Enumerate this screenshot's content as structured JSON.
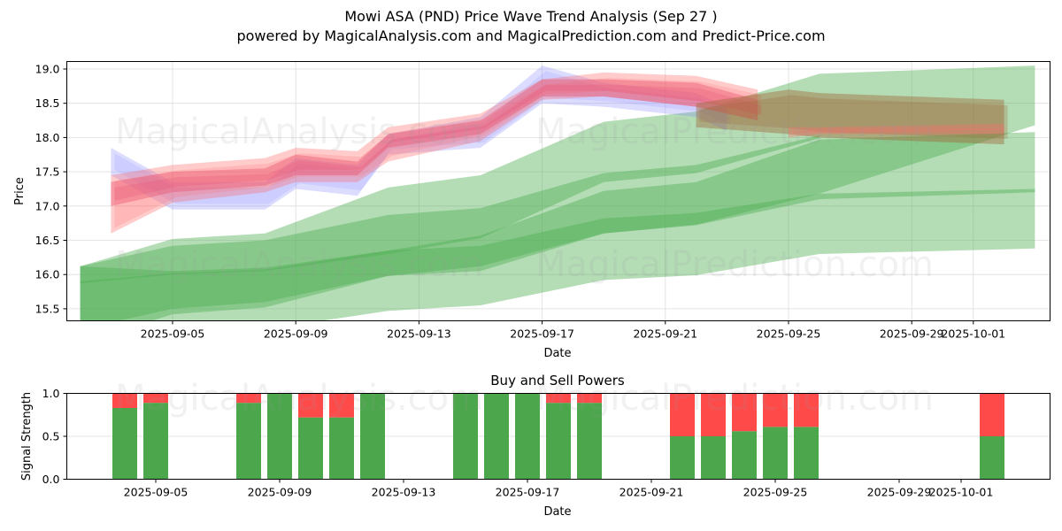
{
  "header": {
    "title": "Mowi ASA (PND) Price Wave Trend Analysis (Sep 27 )",
    "subtitle": "powered by MagicalAnalysis.com and MagicalPrediction.com and Predict-Price.com"
  },
  "watermarks": [
    "MagicalAnalysis.com",
    "MagicalPrediction.com"
  ],
  "colors": {
    "buy": "#4ca64c",
    "sell": "#ff4a4a",
    "band_green": "#4caf50",
    "band_red": "#ff6b6b",
    "band_blue": "#8080ff",
    "band_pink": "#e8506f",
    "band_brown": "#a06a3a"
  },
  "chart_data": [
    {
      "type": "area",
      "title": "",
      "xlabel": "Date",
      "ylabel": "Price",
      "ylim": [
        15.33,
        19.1
      ],
      "xlim": [
        "2025-09-01T12:00",
        "2025-10-03T20:00"
      ],
      "grid": true,
      "yticks": [
        "15.5",
        "16.0",
        "16.5",
        "17.0",
        "17.5",
        "18.0",
        "18.5",
        "19.0"
      ],
      "xticks": [
        "2025-09-05",
        "2025-09-09",
        "2025-09-13",
        "2025-09-17",
        "2025-09-21",
        "2025-09-25",
        "2025-09-29",
        "2025-10-01"
      ],
      "series": [
        {
          "name": "historical-wave-blue",
          "color": "blue",
          "x": [
            "2025-09-03",
            "2025-09-05",
            "2025-09-08",
            "2025-09-09",
            "2025-09-11",
            "2025-09-12",
            "2025-09-15",
            "2025-09-17",
            "2025-09-19",
            "2025-09-22",
            "2025-09-23"
          ],
          "upper": [
            17.85,
            17.35,
            17.35,
            17.7,
            17.6,
            18.05,
            18.3,
            19.05,
            18.8,
            18.65,
            18.45
          ],
          "lower": [
            17.45,
            16.95,
            16.95,
            17.25,
            17.15,
            17.75,
            17.85,
            18.5,
            18.45,
            18.3,
            18.1
          ]
        },
        {
          "name": "historical-wave-red",
          "color": "red",
          "x": [
            "2025-09-03",
            "2025-09-05",
            "2025-09-08",
            "2025-09-09",
            "2025-09-11",
            "2025-09-12",
            "2025-09-15",
            "2025-09-17",
            "2025-09-19",
            "2025-09-22",
            "2025-09-24"
          ],
          "upper": [
            17.45,
            17.6,
            17.7,
            17.85,
            17.8,
            18.15,
            18.35,
            18.85,
            18.95,
            18.9,
            18.7
          ],
          "lower": [
            16.6,
            17.05,
            17.2,
            17.35,
            17.35,
            17.65,
            17.95,
            18.55,
            18.6,
            18.45,
            18.25
          ]
        },
        {
          "name": "historical-wave-pink",
          "color": "pink",
          "x": [
            "2025-09-03",
            "2025-09-05",
            "2025-09-08",
            "2025-09-09",
            "2025-09-11",
            "2025-09-12",
            "2025-09-15",
            "2025-09-17",
            "2025-09-19",
            "2025-09-22",
            "2025-09-24"
          ],
          "upper": [
            17.35,
            17.5,
            17.55,
            17.75,
            17.65,
            18.05,
            18.25,
            18.85,
            18.85,
            18.8,
            18.55
          ],
          "lower": [
            17.0,
            17.2,
            17.3,
            17.45,
            17.45,
            17.85,
            18.05,
            18.6,
            18.6,
            18.45,
            18.25
          ]
        },
        {
          "name": "forecast-wave-brown",
          "color": "brown",
          "x": [
            "2025-09-22",
            "2025-09-25",
            "2025-09-26",
            "2025-10-02"
          ],
          "upper": [
            18.5,
            18.7,
            18.65,
            18.55
          ],
          "lower": [
            18.15,
            18.05,
            18.0,
            17.9
          ]
        },
        {
          "name": "forecast-wave-red",
          "color": "red",
          "x": [
            "2025-09-25",
            "2025-09-26",
            "2025-10-02"
          ],
          "upper": [
            18.15,
            18.15,
            18.2
          ],
          "lower": [
            18.0,
            18.05,
            18.05
          ]
        },
        {
          "name": "green-band-outer-upper",
          "color": "green",
          "x": [
            "2025-09-02",
            "2025-09-05",
            "2025-09-08",
            "2025-09-12",
            "2025-09-15",
            "2025-09-19",
            "2025-09-22",
            "2025-09-26",
            "2025-10-03"
          ],
          "upper": [
            16.12,
            16.52,
            16.6,
            17.27,
            17.45,
            18.23,
            18.38,
            18.93,
            19.05
          ],
          "lower": [
            15.0,
            15.42,
            15.52,
            15.98,
            16.05,
            16.6,
            16.73,
            17.18,
            18.18
          ]
        },
        {
          "name": "green-band-inner-upper",
          "color": "green",
          "x": [
            "2025-09-02",
            "2025-09-05",
            "2025-09-08",
            "2025-09-12",
            "2025-09-15",
            "2025-09-19",
            "2025-09-22",
            "2025-09-26"
          ],
          "upper": [
            16.12,
            16.42,
            16.5,
            16.87,
            16.97,
            17.48,
            17.6,
            18.03
          ],
          "lower": [
            15.87,
            16.0,
            16.05,
            16.3,
            16.53,
            17.35,
            17.48,
            17.99
          ]
        },
        {
          "name": "green-band-outer-lower",
          "color": "green",
          "x": [
            "2025-09-02",
            "2025-09-05",
            "2025-09-08",
            "2025-09-12",
            "2025-09-15",
            "2025-09-19",
            "2025-09-22",
            "2025-09-26",
            "2025-10-03"
          ],
          "upper": [
            16.12,
            16.05,
            16.1,
            16.35,
            16.57,
            17.22,
            17.35,
            17.97,
            18.08
          ],
          "lower": [
            15.0,
            15.15,
            15.2,
            15.47,
            15.55,
            15.92,
            15.99,
            16.3,
            16.38
          ]
        },
        {
          "name": "green-band-inner-lower",
          "color": "green",
          "x": [
            "2025-09-02",
            "2025-09-05",
            "2025-09-08",
            "2025-09-12",
            "2025-09-15",
            "2025-09-19",
            "2025-09-22",
            "2025-09-26",
            "2025-10-03"
          ],
          "upper": [
            15.9,
            16.02,
            16.07,
            16.35,
            16.42,
            16.82,
            16.9,
            17.18,
            17.25
          ],
          "lower": [
            15.2,
            15.5,
            15.6,
            15.98,
            16.12,
            16.6,
            16.72,
            17.1,
            17.2
          ]
        }
      ]
    },
    {
      "type": "bar",
      "title": "Buy and Sell Powers",
      "xlabel": "Date",
      "ylabel": "Signal Strength",
      "ylim": [
        0,
        1
      ],
      "yticks": [
        "0.0",
        "0.5",
        "1.0"
      ],
      "xticks": [
        "2025-09-05",
        "2025-09-09",
        "2025-09-13",
        "2025-09-17",
        "2025-09-21",
        "2025-09-25",
        "2025-09-29",
        "2025-10-01"
      ],
      "grid": true,
      "stacked": true,
      "categories": [
        "2025-09-04",
        "2025-09-05",
        "2025-09-08",
        "2025-09-09",
        "2025-09-10",
        "2025-09-11",
        "2025-09-12",
        "2025-09-15",
        "2025-09-16",
        "2025-09-17",
        "2025-09-18",
        "2025-09-19",
        "2025-09-22",
        "2025-09-23",
        "2025-09-24",
        "2025-09-25",
        "2025-09-26",
        "2025-10-02"
      ],
      "series": [
        {
          "name": "Buy",
          "values": [
            0.83,
            0.89,
            0.89,
            1.0,
            0.72,
            0.72,
            1.0,
            1.0,
            1.0,
            1.0,
            0.89,
            0.89,
            0.5,
            0.5,
            0.56,
            0.61,
            0.61,
            0.5
          ]
        },
        {
          "name": "Sell",
          "values": [
            0.17,
            0.11,
            0.11,
            0.0,
            0.28,
            0.28,
            0.0,
            0.0,
            0.0,
            0.0,
            0.11,
            0.11,
            0.5,
            0.5,
            0.44,
            0.39,
            0.39,
            0.5
          ]
        }
      ]
    }
  ]
}
